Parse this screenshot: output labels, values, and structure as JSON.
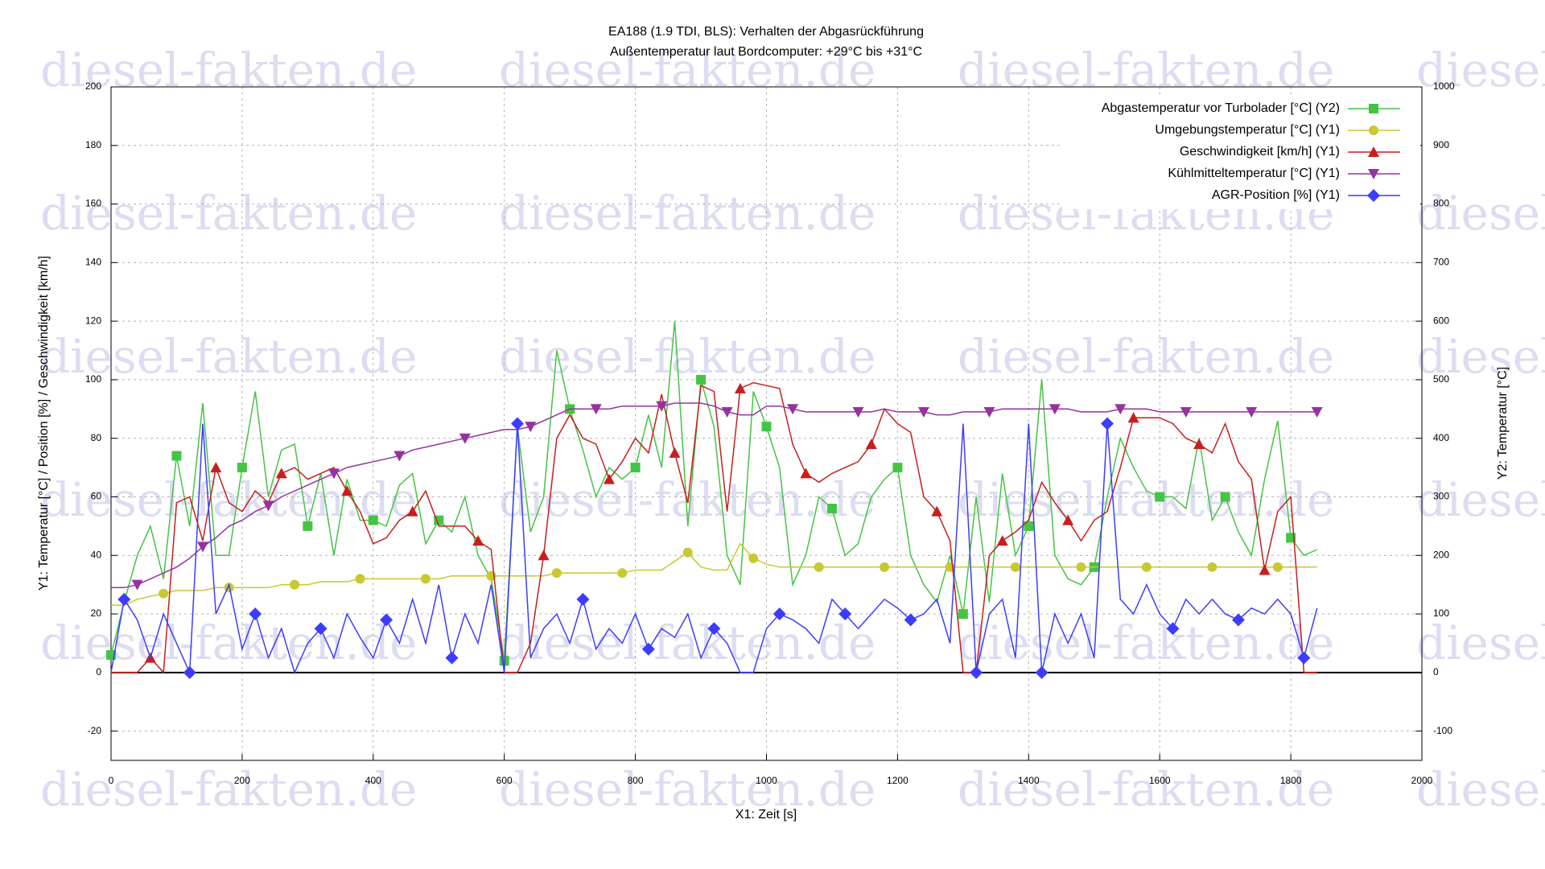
{
  "chart_data": {
    "type": "line",
    "title": "EA188 (1.9 TDI, BLS): Verhalten der Abgasrückführung",
    "subtitle": "Außentemperatur laut Bordcomputer: +29°C bis +31°C",
    "xlabel": "X1: Zeit [s]",
    "ylabel": "Y1: Temperatur [°C] / Position [%] / Geschwindigkeit [km/h]",
    "y2label": "Y2: Temperatur [°C]",
    "watermark": "diesel-fakten.de",
    "xlim": [
      0,
      2000
    ],
    "xticks": [
      0,
      200,
      400,
      600,
      800,
      1000,
      1200,
      1400,
      1600,
      1800,
      2000
    ],
    "ylim": [
      -30,
      200
    ],
    "yticks": [
      -20,
      0,
      20,
      40,
      60,
      80,
      100,
      120,
      140,
      160,
      180,
      200
    ],
    "y2lim": [
      -150,
      1000
    ],
    "y2ticks": [
      -100,
      0,
      100,
      200,
      300,
      400,
      500,
      600,
      700,
      800,
      900,
      1000
    ],
    "grid": true,
    "legend": "top-right",
    "x": [
      0,
      20,
      40,
      60,
      80,
      100,
      120,
      140,
      160,
      180,
      200,
      220,
      240,
      260,
      280,
      300,
      320,
      340,
      360,
      380,
      400,
      420,
      440,
      460,
      480,
      500,
      520,
      540,
      560,
      580,
      600,
      620,
      640,
      660,
      680,
      700,
      720,
      740,
      760,
      780,
      800,
      820,
      840,
      860,
      880,
      900,
      920,
      940,
      960,
      980,
      1000,
      1020,
      1040,
      1060,
      1080,
      1100,
      1120,
      1140,
      1160,
      1180,
      1200,
      1220,
      1240,
      1260,
      1280,
      1300,
      1320,
      1340,
      1360,
      1380,
      1400,
      1420,
      1440,
      1460,
      1480,
      1500,
      1520,
      1540,
      1560,
      1580,
      1600,
      1620,
      1640,
      1660,
      1680,
      1700,
      1720,
      1740,
      1760,
      1780,
      1800,
      1820,
      1840
    ],
    "series": [
      {
        "name": "Abgastemperatur vor Turbolader [°C] (Y2)",
        "color": "#44c444",
        "marker": "square",
        "axis": "y2",
        "values": [
          30,
          120,
          200,
          250,
          160,
          370,
          250,
          460,
          200,
          200,
          350,
          480,
          300,
          380,
          390,
          250,
          340,
          200,
          330,
          260,
          260,
          250,
          320,
          340,
          220,
          260,
          240,
          300,
          200,
          160,
          20,
          420,
          240,
          300,
          550,
          450,
          380,
          300,
          350,
          330,
          350,
          440,
          350,
          600,
          250,
          500,
          420,
          200,
          150,
          480,
          420,
          350,
          150,
          200,
          300,
          280,
          200,
          220,
          300,
          330,
          350,
          200,
          150,
          120,
          200,
          100,
          300,
          120,
          340,
          200,
          250,
          500,
          200,
          160,
          150,
          180,
          300,
          400,
          350,
          310,
          300,
          300,
          280,
          400,
          260,
          300,
          240,
          200,
          330,
          430,
          230,
          200,
          210
        ]
      },
      {
        "name": "Umgebungstemperatur [°C] (Y1)",
        "color": "#c8c832",
        "marker": "circle",
        "values": [
          23,
          23,
          25,
          26,
          27,
          28,
          28,
          28,
          29,
          29,
          29,
          29,
          29,
          30,
          30,
          30,
          31,
          31,
          31,
          32,
          32,
          32,
          32,
          32,
          32,
          32,
          33,
          33,
          33,
          33,
          33,
          33,
          33,
          33,
          34,
          34,
          34,
          34,
          34,
          34,
          35,
          35,
          35,
          38,
          41,
          36,
          35,
          35,
          44,
          39,
          37,
          36,
          36,
          36,
          36,
          36,
          36,
          36,
          36,
          36,
          36,
          36,
          36,
          36,
          36,
          36,
          36,
          36,
          36,
          36,
          36,
          36,
          36,
          36,
          36,
          36,
          36,
          36,
          36,
          36,
          36,
          36,
          36,
          36,
          36,
          36,
          36,
          36,
          36,
          36,
          36,
          36,
          36
        ]
      },
      {
        "name": "Geschwindigkeit [km/h] (Y1)",
        "color": "#c81e1e",
        "marker": "triangle-up",
        "values": [
          0,
          0,
          0,
          5,
          0,
          58,
          60,
          45,
          70,
          58,
          55,
          62,
          58,
          68,
          70,
          66,
          68,
          70,
          62,
          55,
          44,
          46,
          52,
          55,
          62,
          50,
          50,
          50,
          45,
          42,
          0,
          0,
          10,
          40,
          80,
          88,
          80,
          78,
          66,
          72,
          80,
          75,
          95,
          75,
          58,
          98,
          96,
          55,
          97,
          99,
          98,
          97,
          78,
          68,
          65,
          68,
          70,
          72,
          78,
          90,
          85,
          82,
          60,
          55,
          45,
          0,
          0,
          40,
          45,
          48,
          52,
          65,
          58,
          52,
          45,
          52,
          55,
          70,
          87,
          87,
          87,
          85,
          80,
          78,
          75,
          85,
          72,
          66,
          35,
          55,
          60,
          0,
          0
        ]
      },
      {
        "name": "Kühlmitteltemperatur [°C] (Y1)",
        "color": "#9632a0",
        "marker": "triangle-down",
        "values": [
          29,
          29,
          30,
          32,
          34,
          36,
          39,
          43,
          46,
          50,
          52,
          55,
          57,
          60,
          62,
          64,
          66,
          68,
          70,
          71,
          72,
          73,
          74,
          76,
          77,
          78,
          79,
          80,
          81,
          82,
          83,
          83,
          84,
          86,
          88,
          90,
          90,
          90,
          90,
          91,
          91,
          91,
          91,
          92,
          92,
          92,
          91,
          89,
          88,
          88,
          91,
          91,
          90,
          89,
          89,
          89,
          89,
          89,
          89,
          90,
          89,
          89,
          89,
          88,
          88,
          89,
          89,
          89,
          90,
          90,
          90,
          90,
          90,
          90,
          89,
          89,
          89,
          90,
          90,
          90,
          89,
          89,
          89,
          89,
          89,
          89,
          89,
          89,
          89,
          89,
          89,
          89,
          89
        ]
      },
      {
        "name": "AGR-Position [%] (Y1)",
        "color": "#3c3cff",
        "marker": "diamond",
        "values": [
          0,
          25,
          18,
          5,
          20,
          10,
          0,
          85,
          20,
          30,
          8,
          20,
          5,
          15,
          0,
          10,
          15,
          5,
          20,
          12,
          5,
          18,
          10,
          25,
          10,
          30,
          5,
          20,
          10,
          30,
          0,
          85,
          5,
          15,
          20,
          10,
          25,
          8,
          15,
          10,
          20,
          8,
          15,
          12,
          20,
          5,
          15,
          10,
          0,
          0,
          15,
          20,
          18,
          15,
          10,
          25,
          20,
          15,
          20,
          25,
          22,
          18,
          20,
          25,
          10,
          85,
          0,
          20,
          25,
          5,
          85,
          0,
          20,
          10,
          20,
          5,
          85,
          25,
          20,
          30,
          20,
          15,
          25,
          20,
          25,
          20,
          18,
          22,
          20,
          25,
          20,
          5,
          22
        ]
      }
    ]
  }
}
